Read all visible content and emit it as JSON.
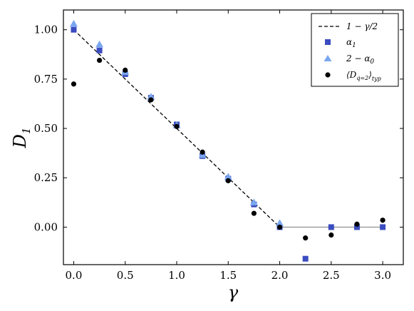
{
  "chart_data": {
    "type": "scatter",
    "xlabel": "γ",
    "ylabel": "D",
    "ylabel_sub": "1",
    "xlim": [
      -0.1,
      3.2
    ],
    "ylim": [
      -0.19,
      1.1
    ],
    "xticks": [
      "0.0",
      "0.5",
      "1.0",
      "1.5",
      "2.0",
      "2.5",
      "3.0"
    ],
    "xtick_values": [
      0.0,
      0.5,
      1.0,
      1.5,
      2.0,
      2.5,
      3.0
    ],
    "yticks": [
      "0.00",
      "0.25",
      "0.50",
      "0.75",
      "1.00"
    ],
    "ytick_values": [
      0.0,
      0.25,
      0.5,
      0.75,
      1.0
    ],
    "grid": false,
    "legend_position": "top-right",
    "reference_lines": [
      {
        "name": "1 − γ/2",
        "style": "dashed",
        "color": "#000000",
        "x": [
          0.0,
          2.0
        ],
        "y": [
          1.0,
          0.0
        ]
      },
      {
        "name": "",
        "style": "solid",
        "color": "#999999",
        "x": [
          2.0,
          3.0
        ],
        "y": [
          0.0,
          0.0
        ]
      }
    ],
    "series": [
      {
        "name": "α",
        "name_sub": "1",
        "marker": "square",
        "color": "#3b4cc0",
        "x": [
          0.0,
          0.25,
          0.5,
          0.75,
          1.0,
          1.25,
          1.5,
          1.75,
          2.0,
          2.25,
          2.5,
          2.75,
          3.0
        ],
        "y": [
          1.0,
          0.895,
          0.775,
          0.655,
          0.52,
          0.36,
          0.245,
          0.115,
          0.0,
          -0.16,
          0.0,
          0.0,
          0.0
        ]
      },
      {
        "name": "2 − α",
        "name_sub": "0",
        "marker": "triangle",
        "color": "#7aa6f0",
        "x": [
          0.0,
          0.25,
          0.5,
          0.75,
          1.0,
          1.25,
          1.5,
          1.75,
          2.0
        ],
        "y": [
          1.03,
          0.925,
          0.785,
          0.66,
          0.515,
          0.365,
          0.255,
          0.125,
          0.02
        ]
      },
      {
        "name": "⟨D",
        "name_sub": "q=2",
        "name_post": "⟩",
        "name_sub2": "typ",
        "marker": "circle",
        "color": "#000000",
        "x": [
          0.0,
          0.25,
          0.5,
          0.75,
          1.0,
          1.25,
          1.5,
          1.75,
          2.0,
          2.25,
          2.5,
          2.75,
          3.0
        ],
        "y": [
          0.725,
          0.845,
          0.795,
          0.645,
          0.51,
          0.38,
          0.235,
          0.07,
          0.0,
          -0.055,
          -0.04,
          0.015,
          0.035
        ]
      }
    ]
  }
}
